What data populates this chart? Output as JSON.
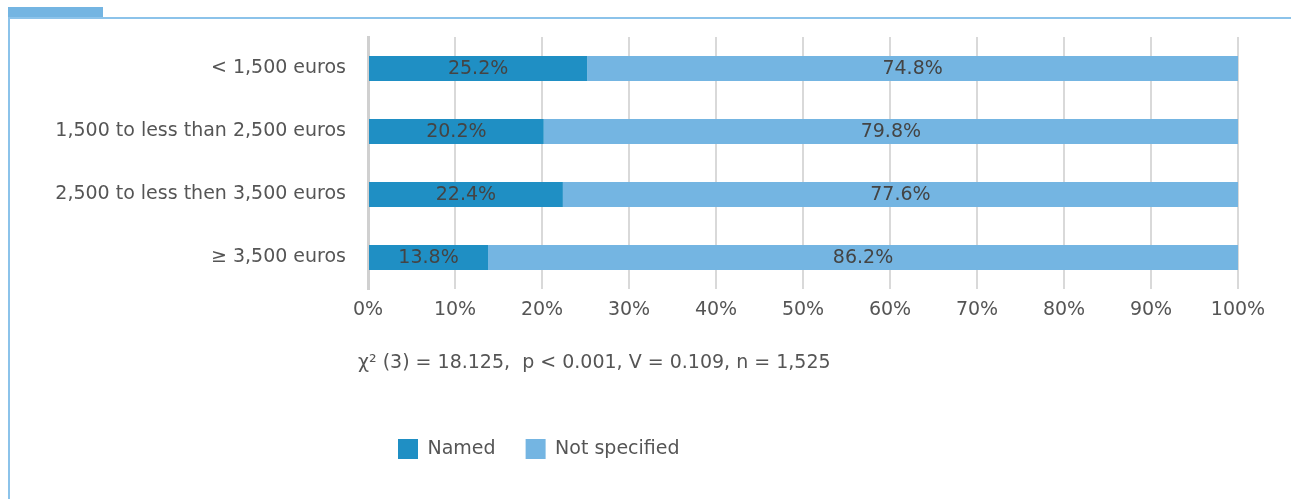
{
  "chart_data": {
    "type": "bar",
    "orientation": "horizontal",
    "stacked": true,
    "categories": [
      "< 1,500 euros",
      "1,500 to less than 2,500 euros",
      "2,500 to less then 3,500 euros",
      "≥ 3,500 euros"
    ],
    "series": [
      {
        "name": "Named",
        "color": "#1f8fc4",
        "values": [
          25.2,
          20.2,
          22.4,
          13.8
        ]
      },
      {
        "name": "Not specified",
        "color": "#74b5e2",
        "values": [
          74.8,
          79.8,
          77.6,
          86.2
        ]
      }
    ],
    "value_labels": [
      [
        "25.2%",
        "20.2%",
        "22.4%",
        "13.8%"
      ],
      [
        "74.8%",
        "79.8%",
        "77.6%",
        "86.2%"
      ]
    ],
    "xlim": [
      0,
      100
    ],
    "xticks": [
      {
        "value": 0,
        "label": "0%"
      },
      {
        "value": 10,
        "label": "10%"
      },
      {
        "value": 20,
        "label": "20%"
      },
      {
        "value": 30,
        "label": "30%"
      },
      {
        "value": 40,
        "label": "40%"
      },
      {
        "value": 50,
        "label": "50%"
      },
      {
        "value": 60,
        "label": "60%"
      },
      {
        "value": 70,
        "label": "70%"
      },
      {
        "value": 80,
        "label": "80%"
      },
      {
        "value": 90,
        "label": "90%"
      },
      {
        "value": 100,
        "label": "100%"
      }
    ],
    "grid": "x",
    "legend": "bottom left",
    "annotations": [
      "χ² (3) = 18.125,  p < 0.001, V = 0.109, n = 1,525"
    ]
  }
}
